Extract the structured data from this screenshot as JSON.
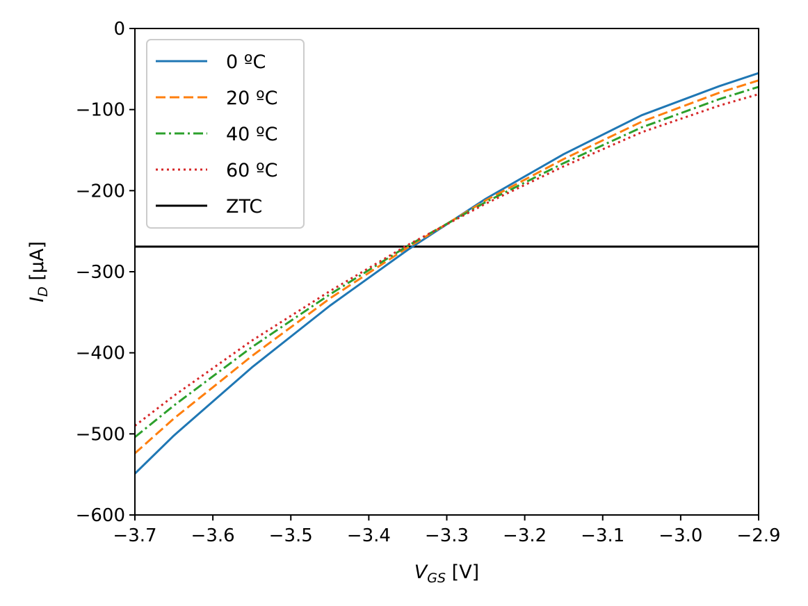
{
  "chart_data": {
    "type": "line",
    "xlabel_main": "V",
    "xlabel_sub": "GS",
    "xlabel_unit": " [V]",
    "ylabel_main": "I",
    "ylabel_sub": "D",
    "ylabel_unit": " [μA]",
    "xlim": [
      -3.7,
      -2.9
    ],
    "ylim": [
      -600,
      0
    ],
    "x_ticks": [
      -3.7,
      -3.6,
      -3.5,
      -3.4,
      -3.3,
      -3.2,
      -3.1,
      -3.0,
      -2.9
    ],
    "x_tick_labels": [
      "−3.7",
      "−3.6",
      "−3.5",
      "−3.4",
      "−3.3",
      "−3.2",
      "−3.1",
      "−3.0",
      "−2.9"
    ],
    "y_ticks": [
      0,
      -100,
      -200,
      -300,
      -400,
      -500,
      -600
    ],
    "y_tick_labels": [
      "0",
      "−100",
      "−200",
      "−300",
      "−400",
      "−500",
      "−600"
    ],
    "legend_position": "top-left",
    "x": [
      -3.7,
      -3.65,
      -3.55,
      -3.45,
      -3.35,
      -3.25,
      -3.15,
      -3.05,
      -2.95,
      -2.9
    ],
    "series": [
      {
        "name": "0 ºC",
        "color": "#1f77b4",
        "dash": "solid",
        "values": [
          -549,
          -502,
          -418,
          -342,
          -273,
          -210,
          -155,
          -107,
          -71,
          -55
        ]
      },
      {
        "name": "20 ºC",
        "color": "#ff7f0e",
        "dash": "dashed",
        "values": [
          -524,
          -481,
          -404,
          -333,
          -270,
          -212,
          -161,
          -115,
          -79,
          -64
        ]
      },
      {
        "name": "40 ºC",
        "color": "#2ca02c",
        "dash": "dashdot",
        "values": [
          -504,
          -465,
          -393,
          -328,
          -268,
          -214,
          -166,
          -122,
          -87,
          -72
        ]
      },
      {
        "name": "60 ºC",
        "color": "#d62728",
        "dash": "dotted",
        "values": [
          -490,
          -453,
          -385,
          -324,
          -267,
          -216,
          -170,
          -128,
          -95,
          -81
        ]
      }
    ],
    "hlines": [
      {
        "name": "ZTC",
        "color": "#000000",
        "y": -269
      }
    ]
  }
}
